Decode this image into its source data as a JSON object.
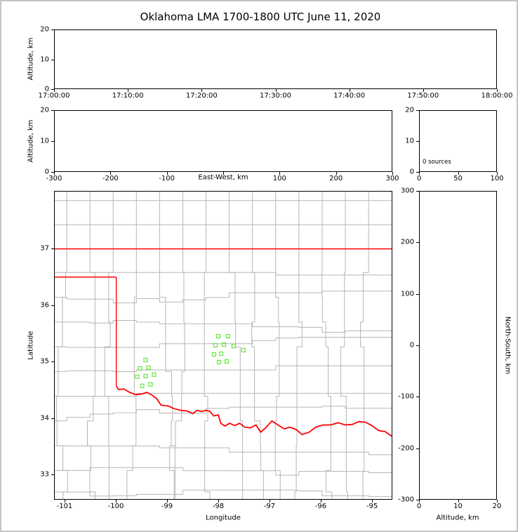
{
  "title": "Oklahoma LMA 1700-1800 UTC June 11, 2020",
  "colors": {
    "frame": "#c4c4c4",
    "axis": "#000000",
    "county": "#b5b5b5",
    "state_border": "#ff0000",
    "station": "#66e63c"
  },
  "chart_data": [
    {
      "id": "time_height",
      "type": "scatter",
      "title": "",
      "xlabel": "",
      "ylabel": "Altitude, km",
      "ylim": [
        0,
        20
      ],
      "yticks": [
        0,
        10,
        20
      ],
      "xtick_labels": [
        "17:00:00",
        "17:10:00",
        "17:20:00",
        "17:30:00",
        "17:40:00",
        "17:50:00",
        "18:00:00"
      ],
      "points": []
    },
    {
      "id": "ew_height",
      "type": "scatter",
      "xlabel": "East-West, km",
      "ylabel": "Altitude, km",
      "xlim": [
        -300,
        300
      ],
      "xticks": [
        -300,
        -200,
        -100,
        0,
        100,
        200,
        300
      ],
      "xtick_labels": [
        "-300",
        "-200",
        "-100",
        "",
        "100",
        "200",
        "300"
      ],
      "ylim": [
        0,
        20
      ],
      "yticks": [
        0,
        10,
        20
      ],
      "points": []
    },
    {
      "id": "alt_histogram",
      "type": "histogram",
      "annotation": "0 sources",
      "xlim": [
        0,
        100
      ],
      "xticks": [
        0,
        50,
        100
      ],
      "ylim": [
        0,
        20
      ],
      "yticks": [
        0,
        10,
        20
      ],
      "values": []
    },
    {
      "id": "plan_view",
      "type": "scatter",
      "xlabel": "Longitude",
      "ylabel": "Latitude",
      "xlim": [
        -101.205,
        -94.603
      ],
      "ylim": [
        32.553,
        38.019
      ],
      "xticks": [
        -101,
        -100,
        -99,
        -98,
        -97,
        -96,
        -95
      ],
      "yticks": [
        33,
        34,
        35,
        36,
        37
      ],
      "stations": [
        [
          -98.0,
          35.447
        ],
        [
          -97.808,
          35.447
        ],
        [
          -98.055,
          35.286
        ],
        [
          -97.89,
          35.298
        ],
        [
          -97.699,
          35.273
        ],
        [
          -98.082,
          35.124
        ],
        [
          -97.945,
          35.137
        ],
        [
          -97.986,
          34.988
        ],
        [
          -97.836,
          35.0
        ],
        [
          -97.507,
          35.199
        ],
        [
          -99.425,
          35.025
        ],
        [
          -99.534,
          34.876
        ],
        [
          -99.37,
          34.888
        ],
        [
          -99.589,
          34.727
        ],
        [
          -99.425,
          34.739
        ],
        [
          -99.26,
          34.764
        ],
        [
          -99.493,
          34.565
        ],
        [
          -99.329,
          34.59
        ]
      ],
      "state_border": [
        [
          [
            -101.205,
            37.0
          ],
          [
            -94.603,
            37.0
          ]
        ],
        [
          [
            -101.205,
            36.5
          ],
          [
            -100.0,
            36.5
          ]
        ],
        [
          [
            -100.0,
            36.5
          ],
          [
            -100.0,
            34.56
          ]
        ]
      ],
      "red_river": [
        [
          -100.0,
          34.56
        ],
        [
          -99.95,
          34.5
        ],
        [
          -99.85,
          34.51
        ],
        [
          -99.74,
          34.45
        ],
        [
          -99.62,
          34.41
        ],
        [
          -99.5,
          34.42
        ],
        [
          -99.4,
          34.45
        ],
        [
          -99.3,
          34.4
        ],
        [
          -99.21,
          34.34
        ],
        [
          -99.12,
          34.22
        ],
        [
          -98.99,
          34.21
        ],
        [
          -98.87,
          34.16
        ],
        [
          -98.74,
          34.13
        ],
        [
          -98.61,
          34.12
        ],
        [
          -98.5,
          34.07
        ],
        [
          -98.42,
          34.13
        ],
        [
          -98.33,
          34.11
        ],
        [
          -98.24,
          34.13
        ],
        [
          -98.16,
          34.11
        ],
        [
          -98.09,
          34.03
        ],
        [
          -98.0,
          34.05
        ],
        [
          -97.95,
          33.9
        ],
        [
          -97.87,
          33.85
        ],
        [
          -97.78,
          33.9
        ],
        [
          -97.68,
          33.86
        ],
        [
          -97.58,
          33.9
        ],
        [
          -97.48,
          33.83
        ],
        [
          -97.37,
          33.82
        ],
        [
          -97.26,
          33.87
        ],
        [
          -97.17,
          33.74
        ],
        [
          -97.07,
          33.82
        ],
        [
          -96.95,
          33.94
        ],
        [
          -96.83,
          33.87
        ],
        [
          -96.71,
          33.8
        ],
        [
          -96.6,
          33.83
        ],
        [
          -96.48,
          33.79
        ],
        [
          -96.36,
          33.7
        ],
        [
          -96.22,
          33.74
        ],
        [
          -96.09,
          33.83
        ],
        [
          -95.95,
          33.87
        ],
        [
          -95.8,
          33.87
        ],
        [
          -95.65,
          33.91
        ],
        [
          -95.51,
          33.87
        ],
        [
          -95.37,
          33.88
        ],
        [
          -95.25,
          33.93
        ],
        [
          -95.12,
          33.92
        ],
        [
          -94.99,
          33.86
        ],
        [
          -94.86,
          33.77
        ],
        [
          -94.73,
          33.75
        ],
        [
          -94.6,
          33.67
        ]
      ]
    },
    {
      "id": "height_ns",
      "type": "scatter",
      "xlabel": "Altitude, km",
      "ylabel": "North-South, km",
      "xlim": [
        0,
        20
      ],
      "xticks": [
        0,
        10,
        20
      ],
      "ylim": [
        -300,
        300
      ],
      "yticks": [
        -300,
        -200,
        -100,
        0,
        100,
        200,
        300
      ],
      "points": []
    }
  ]
}
